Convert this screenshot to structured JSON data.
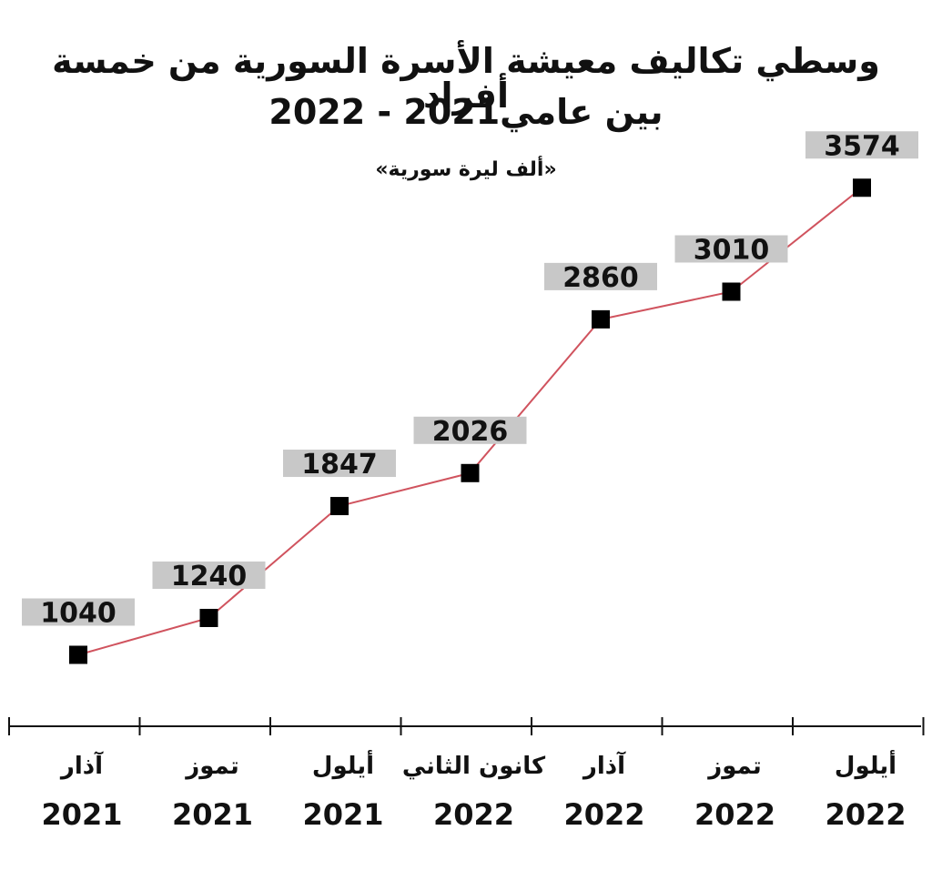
{
  "title_line1": "وسطي تكاليف معيشة الأسرة السورية من خمسة أفراد",
  "title_line2": "بين عامي2021 - 2022",
  "unit_label": "«ألف ليرة سورية»",
  "colors": {
    "line": "#d0535e",
    "marker": "#000000",
    "label_bg": "#c8c8c8",
    "axis": "#111111"
  },
  "chart_data": {
    "type": "line",
    "title": "وسطي تكاليف معيشة الأسرة السورية من خمسة أفراد بين عامي2021 - 2022",
    "ylabel": "«ألف ليرة سورية»",
    "categories": [
      {
        "month": "آذار",
        "year": "2021"
      },
      {
        "month": "تموز",
        "year": "2021"
      },
      {
        "month": "أيلول",
        "year": "2021"
      },
      {
        "month": "كانون الثاني",
        "year": "2022"
      },
      {
        "month": "آذار",
        "year": "2022"
      },
      {
        "month": "تموز",
        "year": "2022"
      },
      {
        "month": "أيلول",
        "year": "2022"
      }
    ],
    "values": [
      1040,
      1240,
      1847,
      2026,
      2860,
      3010,
      3574
    ],
    "data_labels": [
      "1040",
      "1240",
      "1847",
      "2026",
      "2860",
      "3010",
      "3574"
    ],
    "ylim": [
      840,
      3600
    ],
    "grid": false,
    "legend": "none"
  }
}
